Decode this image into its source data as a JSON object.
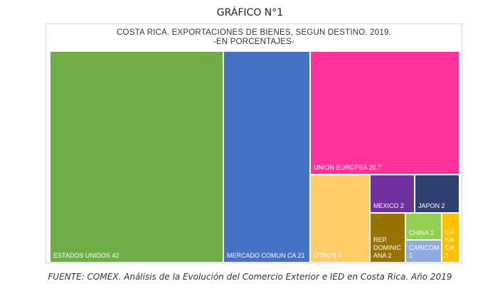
{
  "header": {
    "figure_title": "GRÁFICO N°1"
  },
  "chart_data": {
    "type": "treemap",
    "title": "COSTA RICA. EXPORTACIONES DE BIENES, SEGUN DESTINO. 2019.",
    "subtitle": "-EN PORCENTAJES-",
    "tiles": [
      {
        "name": "ESTADOS UNIDOS",
        "value": 42,
        "label": "ESTADOS UNIDOS  42",
        "color": "#70AD47"
      },
      {
        "name": "MERCADO COMUN CA",
        "value": 21,
        "label": "MERCADO COMUN CA 21",
        "color": "#4472C4"
      },
      {
        "name": "UNION EUROPEA",
        "value": 20.7,
        "label": "UNION EUROPEA 20,7",
        "color": "#FF3399"
      },
      {
        "name": "OTROS",
        "value": 6,
        "label": "OTROS 6",
        "color": "#FFCC66"
      },
      {
        "name": "MEXICO",
        "value": 2,
        "label": "MEXICO  2",
        "color": "#7030A0"
      },
      {
        "name": "JAPON",
        "value": 2,
        "label": "JAPON  2",
        "color": "#2F3F6F"
      },
      {
        "name": "REP. DOMINICANA",
        "value": 2,
        "label": "REP.\nDOMINIC\nANA  2",
        "color": "#997300"
      },
      {
        "name": "CHINA",
        "value": 1,
        "label": "CHINA  1",
        "color": "#92D050"
      },
      {
        "name": "CARICOM",
        "value": 1,
        "label": "CARICOM\n1",
        "color": "#8FAADC"
      },
      {
        "name": "CANADA",
        "value": 1,
        "label": "CA\nNA\nDA\n1",
        "color": "#FFC000"
      }
    ]
  },
  "footer": {
    "source": "FUENTE: COMEX. Análisis de la Evolución del Comercio Exterior e IED en Costa Rica. Año 2019"
  }
}
